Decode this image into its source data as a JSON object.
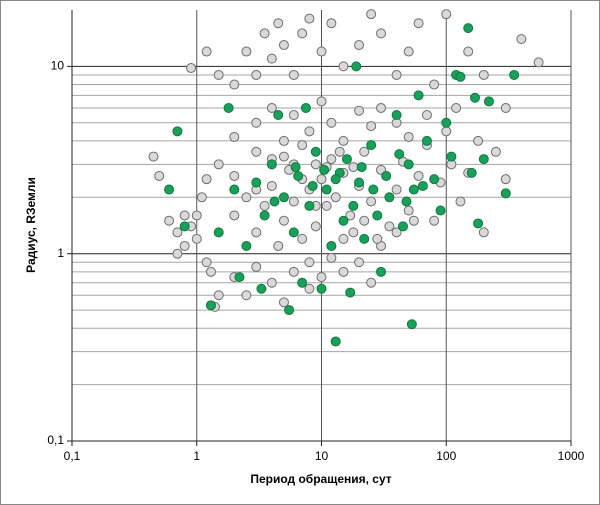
{
  "chart_data": {
    "type": "scatter",
    "x_label": "Период обращения, сут",
    "y_label": "Радиус, RЗемли",
    "xscale": "log",
    "yscale": "log",
    "xlim": [
      0.1,
      1000
    ],
    "ylim": [
      0.1,
      20
    ],
    "xticks": [
      {
        "value": 0.1,
        "label": "0,1"
      },
      1,
      10,
      100,
      1000
    ],
    "yticks": [
      {
        "value": 0.1,
        "label": "0,1"
      },
      1,
      10
    ],
    "grid": true,
    "minor_grid_y": true,
    "series": [
      {
        "color": "#d9d9d9",
        "x": [
          0.45,
          0.5,
          0.6,
          0.7,
          0.8,
          0.9,
          1,
          1.1,
          1.2,
          1.3,
          1.5,
          1.4,
          0.9,
          1.2,
          1.5,
          2,
          2.5,
          3,
          3.5,
          4,
          4.5,
          5,
          6,
          7,
          8,
          10,
          12,
          15,
          20,
          25,
          30,
          40,
          50,
          60,
          80,
          100,
          150,
          200,
          300,
          400,
          550,
          3,
          4,
          5,
          6,
          7,
          8,
          9,
          10,
          11,
          12,
          13,
          15,
          17,
          20,
          22,
          25,
          30,
          35,
          40,
          45,
          50,
          60,
          70,
          80,
          90,
          110,
          130,
          150,
          180,
          200,
          250,
          300,
          2,
          2.5,
          3,
          3.5,
          4,
          4.5,
          5,
          5.5,
          6,
          7,
          8,
          9,
          2,
          2.5,
          3,
          4,
          5,
          6,
          8,
          10,
          12,
          15,
          20,
          25,
          30,
          2,
          3,
          1.5,
          1.2,
          0.8,
          0.7,
          1,
          4,
          6,
          8,
          10,
          12,
          15,
          20,
          25,
          30,
          40,
          50,
          70,
          100,
          120,
          15,
          18,
          22,
          28,
          40,
          55,
          2,
          3,
          5,
          7,
          9,
          11,
          14,
          18
        ],
        "values": [
          3.3,
          2.6,
          1.5,
          1.3,
          1.1,
          1.4,
          1.2,
          2,
          0.9,
          0.8,
          0.6,
          0.52,
          9.8,
          12,
          9,
          8,
          12,
          9,
          15,
          11,
          17,
          13,
          9,
          15,
          18,
          12,
          17,
          10,
          13,
          19,
          15,
          9,
          12,
          17,
          8,
          19,
          12,
          9,
          6,
          14,
          10.5,
          5,
          6,
          4,
          3,
          2.5,
          2.2,
          3,
          2.5,
          1.8,
          3.2,
          2,
          2.7,
          1.6,
          2.3,
          3.5,
          1.9,
          2.8,
          1.4,
          2.2,
          3.1,
          1.7,
          2.6,
          3.8,
          1.5,
          2.4,
          3,
          1.9,
          2.7,
          4,
          1.3,
          3.5,
          2.5,
          1.6,
          2,
          1.3,
          1.8,
          2.3,
          1.1,
          1.5,
          2.8,
          1.9,
          1.2,
          0.9,
          1.4,
          0.75,
          0.6,
          0.85,
          0.7,
          0.55,
          0.8,
          0.65,
          0.75,
          0.95,
          0.8,
          0.9,
          0.7,
          1.1,
          4.2,
          3.5,
          3,
          2.5,
          1.6,
          1,
          1.6,
          3.2,
          5.5,
          4.5,
          6.5,
          5,
          4,
          5.8,
          4.8,
          6,
          5,
          4.2,
          5.5,
          4.5,
          6,
          1.2,
          1.3,
          1.5,
          1.2,
          1.3,
          1.5,
          2.6,
          2.2,
          3.3,
          3.8,
          1.8,
          2.9,
          3.5,
          2.9
        ]
      },
      {
        "color": "#1aa05a",
        "x": [
          0.6,
          0.7,
          0.8,
          1.3,
          1.5,
          1.8,
          2,
          2.2,
          2.5,
          3,
          3.3,
          3.5,
          4,
          4.5,
          5,
          5.5,
          6,
          6.5,
          7,
          7.5,
          8,
          9,
          10,
          11,
          12,
          13,
          14,
          15,
          16,
          17,
          18,
          19,
          20,
          22,
          25,
          28,
          30,
          35,
          40,
          45,
          50,
          53,
          55,
          60,
          70,
          80,
          90,
          100,
          110,
          120,
          150,
          160,
          180,
          200,
          220,
          300,
          350,
          4.2,
          6.2,
          8.5,
          10.5,
          13,
          21,
          26,
          33,
          42,
          48,
          65,
          130,
          170
        ],
        "values": [
          2.2,
          4.5,
          1.4,
          0.53,
          1.3,
          6,
          2.2,
          0.75,
          1.1,
          2.4,
          0.65,
          1.6,
          3,
          5.5,
          2,
          0.5,
          1.3,
          2.6,
          0.7,
          6,
          1.8,
          3.5,
          0.65,
          2.2,
          1.1,
          0.34,
          2.7,
          1.5,
          3.2,
          0.62,
          1.8,
          10,
          2.4,
          1.2,
          3.8,
          1.6,
          0.8,
          2,
          5.5,
          1.4,
          3,
          0.42,
          2.2,
          7,
          4,
          2.5,
          1.7,
          5,
          3.3,
          9,
          16,
          2.7,
          1.45,
          3.2,
          6.5,
          2.1,
          9,
          1.9,
          2.9,
          2.3,
          2.8,
          2.5,
          2.9,
          2.2,
          2.6,
          3.4,
          1.9,
          2.3,
          8.8,
          6.8
        ]
      }
    ]
  }
}
